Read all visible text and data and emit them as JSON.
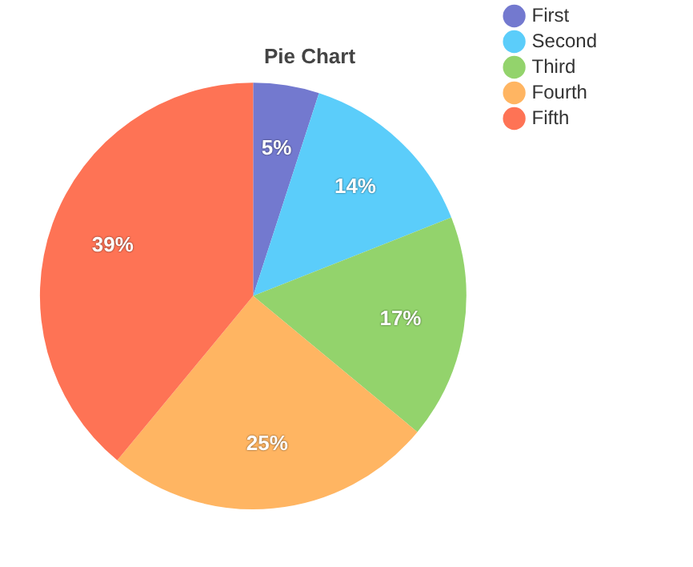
{
  "chart_data": {
    "type": "pie",
    "title": "Pie Chart",
    "categories": [
      "First",
      "Second",
      "Third",
      "Fourth",
      "Fifth"
    ],
    "values": [
      5,
      14,
      17,
      25,
      39
    ],
    "colors": [
      "#7379cf",
      "#5bcdfa",
      "#93d36c",
      "#ffb562",
      "#fe7355"
    ],
    "value_labels": [
      "5%",
      "14%",
      "17%",
      "25%",
      "39%"
    ],
    "legend": "top right"
  }
}
